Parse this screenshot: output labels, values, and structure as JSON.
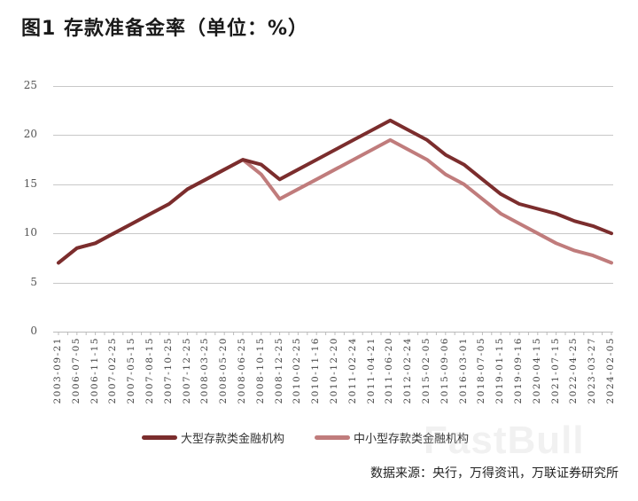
{
  "title": "图1  存款准备金率（单位：%）",
  "source": "数据来源：央行，万得资讯，万联证券研究所",
  "watermark": "FastBull",
  "colors": {
    "large": "#7b2d2d",
    "small": "#c07c7c",
    "grid": "#c8c8c8"
  },
  "legend": [
    {
      "label": "大型存款类金融机构",
      "color": "#7b2d2d"
    },
    {
      "label": "中小型存款类金融机构",
      "color": "#c07c7c"
    }
  ],
  "chart_data": {
    "type": "line",
    "title": "存款准备金率（单位：%）",
    "xlabel": "",
    "ylabel": "%",
    "ylim": [
      0,
      25
    ],
    "yticks": [
      0,
      5,
      10,
      15,
      20,
      25
    ],
    "grid": true,
    "legend_position": "bottom",
    "categories": [
      "2003-09-21",
      "2006-07-05",
      "2006-11-15",
      "2007-02-25",
      "2007-05-15",
      "2007-08-15",
      "2007-10-25",
      "2007-12-25",
      "2008-03-25",
      "2008-05-20",
      "2008-06-25",
      "2008-10-15",
      "2008-12-25",
      "2010-02-25",
      "2010-11-16",
      "2010-12-20",
      "2011-02-24",
      "2011-04-21",
      "2011-06-20",
      "2012-02-24",
      "2015-02-05",
      "2015-09-06",
      "2016-03-01",
      "2018-07-05",
      "2019-01-15",
      "2019-09-16",
      "2020-04-15",
      "2021-07-15",
      "2022-04-25",
      "2023-03-27",
      "2024-02-05"
    ],
    "series": [
      {
        "name": "大型存款类金融机构",
        "color": "#7b2d2d",
        "values": [
          7,
          8.5,
          9,
          10,
          11,
          12,
          13,
          14.5,
          15.5,
          16.5,
          17.5,
          17,
          15.5,
          16.5,
          17.5,
          18.5,
          19.5,
          20.5,
          21.5,
          20.5,
          19.5,
          18,
          17,
          15.5,
          14,
          13,
          12.5,
          12,
          11.25,
          10.75,
          10
        ]
      },
      {
        "name": "中小型存款类金融机构",
        "color": "#c07c7c",
        "values": [
          7,
          8.5,
          9,
          10,
          11,
          12,
          13,
          14.5,
          15.5,
          16.5,
          17.5,
          16,
          13.5,
          14.5,
          15.5,
          16.5,
          17.5,
          18.5,
          19.5,
          18.5,
          17.5,
          16,
          15,
          13.5,
          12,
          11,
          10,
          9,
          8.25,
          7.75,
          7
        ]
      }
    ]
  }
}
